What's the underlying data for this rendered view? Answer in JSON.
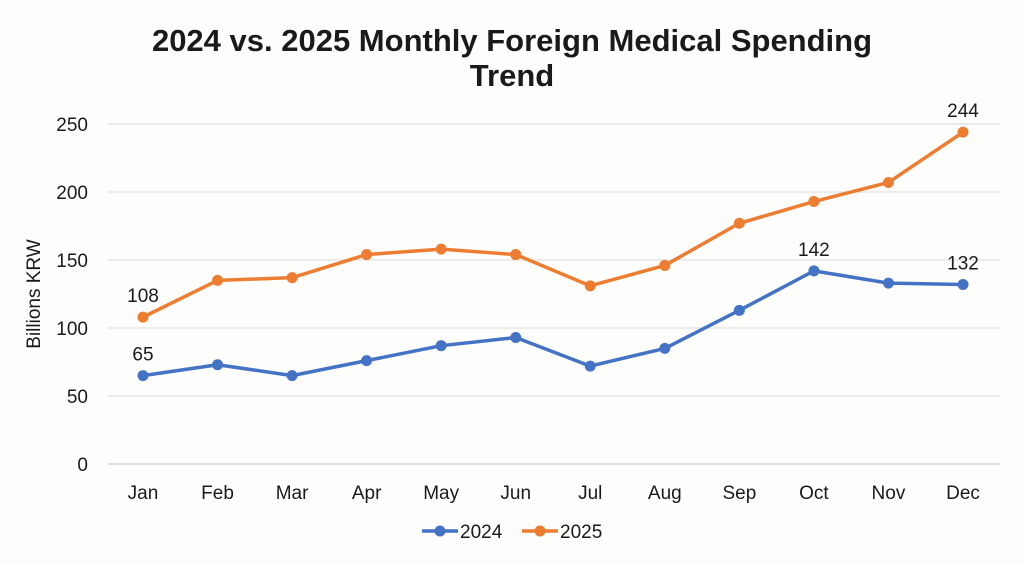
{
  "chart_data": {
    "type": "line",
    "title": "2024 vs. 2025 Monthly Foreign Medical Spending Trend",
    "title_lines": [
      "2024 vs. 2025 Monthly Foreign Medical Spending",
      "Trend"
    ],
    "xlabel": "",
    "ylabel": "Billions KRW",
    "ylim": [
      0,
      250
    ],
    "yticks": [
      0,
      50,
      100,
      150,
      200,
      250
    ],
    "grid": true,
    "legend_position": "bottom",
    "categories": [
      "Jan",
      "Feb",
      "Mar",
      "Apr",
      "May",
      "Jun",
      "Jul",
      "Aug",
      "Sep",
      "Oct",
      "Nov",
      "Dec"
    ],
    "series": [
      {
        "name": "2024",
        "color": "#4472c4",
        "values": [
          65,
          73,
          65,
          76,
          87,
          93,
          72,
          85,
          113,
          142,
          133,
          132
        ],
        "labels": {
          "0": "65",
          "9": "142",
          "11": "132"
        }
      },
      {
        "name": "2025",
        "color": "#ed7d31",
        "values": [
          108,
          135,
          137,
          154,
          158,
          154,
          131,
          146,
          177,
          193,
          207,
          244
        ],
        "labels": {
          "0": "108",
          "11": "244"
        }
      }
    ]
  }
}
